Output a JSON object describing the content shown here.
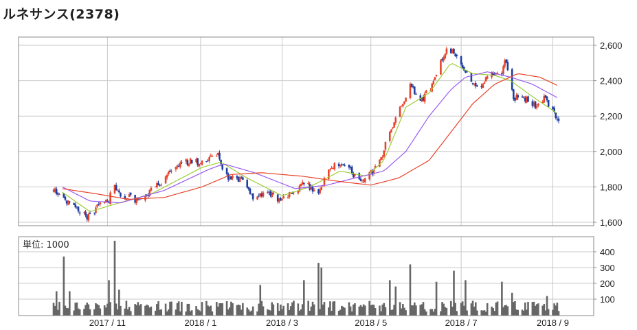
{
  "header": {
    "title": "ルネサンス(2378)"
  },
  "chart_data": [
    {
      "type": "candlestick",
      "title": "ルネサンス(2378)",
      "ylim": [
        1600,
        2650
      ],
      "yticks": [
        "1,600",
        "1,800",
        "2,000",
        "2,200",
        "2,400",
        "2,600"
      ],
      "ytick_values": [
        1600,
        1800,
        2000,
        2200,
        2400,
        2600
      ],
      "x_range": [
        "2017-09-25",
        "2018-09-07"
      ],
      "xticks": [
        {
          "label": "2017 / 11",
          "date": "2017-11-01"
        },
        {
          "label": "2018 / 1",
          "date": "2018-01-04"
        },
        {
          "label": "2018 / 3",
          "date": "2018-03-01"
        },
        {
          "label": "2018 / 5",
          "date": "2018-05-01"
        },
        {
          "label": "2018 / 7",
          "date": "2018-07-02"
        },
        {
          "label": "2018 / 9",
          "date": "2018-09-03"
        }
      ],
      "grid": true,
      "colors": {
        "up": "#e8432a",
        "down": "#1f3ea0",
        "ma_short": "#9acd32",
        "ma_mid": "#9b59f0",
        "ma_long": "#e8432a",
        "grid": "#c8c8c8",
        "frame": "#888888"
      },
      "price_path": [
        [
          "2017-09-25",
          1780
        ],
        [
          "2017-10-04",
          1720
        ],
        [
          "2017-10-14",
          1650
        ],
        [
          "2017-10-20",
          1630
        ],
        [
          "2017-10-26",
          1700
        ],
        [
          "2017-11-02",
          1710
        ],
        [
          "2017-11-04",
          1840
        ],
        [
          "2017-11-10",
          1760
        ],
        [
          "2017-11-20",
          1730
        ],
        [
          "2017-12-02",
          1780
        ],
        [
          "2017-12-12",
          1860
        ],
        [
          "2017-12-22",
          1940
        ],
        [
          "2018-01-08",
          1940
        ],
        [
          "2018-01-16",
          1990
        ],
        [
          "2018-01-20",
          1860
        ],
        [
          "2018-02-03",
          1830
        ],
        [
          "2018-02-08",
          1740
        ],
        [
          "2018-02-20",
          1760
        ],
        [
          "2018-03-01",
          1720
        ],
        [
          "2018-03-08",
          1770
        ],
        [
          "2018-03-16",
          1820
        ],
        [
          "2018-03-26",
          1770
        ],
        [
          "2018-04-04",
          1920
        ],
        [
          "2018-04-14",
          1910
        ],
        [
          "2018-04-25",
          1830
        ],
        [
          "2018-05-04",
          1900
        ],
        [
          "2018-05-08",
          1960
        ],
        [
          "2018-05-14",
          2120
        ],
        [
          "2018-05-22",
          2260
        ],
        [
          "2018-05-28",
          2370
        ],
        [
          "2018-06-05",
          2290
        ],
        [
          "2018-06-12",
          2370
        ],
        [
          "2018-06-18",
          2520
        ],
        [
          "2018-06-23",
          2580
        ],
        [
          "2018-06-30",
          2550
        ],
        [
          "2018-07-08",
          2390
        ],
        [
          "2018-07-14",
          2350
        ],
        [
          "2018-07-22",
          2450
        ],
        [
          "2018-07-30",
          2450
        ],
        [
          "2018-08-02",
          2520
        ],
        [
          "2018-08-07",
          2300
        ],
        [
          "2018-08-16",
          2300
        ],
        [
          "2018-08-22",
          2260
        ],
        [
          "2018-08-28",
          2300
        ],
        [
          "2018-09-07",
          2180
        ]
      ],
      "moving_averages": [
        {
          "type": "short",
          "points": [
            [
              "2017-10-01",
              1770
            ],
            [
              "2017-10-20",
              1660
            ],
            [
              "2017-11-05",
              1700
            ],
            [
              "2017-12-01",
              1760
            ],
            [
              "2018-01-05",
              1910
            ],
            [
              "2018-01-18",
              1940
            ],
            [
              "2018-02-05",
              1850
            ],
            [
              "2018-03-01",
              1750
            ],
            [
              "2018-03-20",
              1800
            ],
            [
              "2018-04-10",
              1890
            ],
            [
              "2018-04-28",
              1860
            ],
            [
              "2018-05-10",
              1950
            ],
            [
              "2018-05-25",
              2250
            ],
            [
              "2018-06-10",
              2330
            ],
            [
              "2018-06-25",
              2500
            ],
            [
              "2018-07-10",
              2440
            ],
            [
              "2018-07-25",
              2430
            ],
            [
              "2018-08-05",
              2400
            ],
            [
              "2018-08-20",
              2310
            ],
            [
              "2018-09-07",
              2210
            ]
          ]
        },
        {
          "type": "mid",
          "points": [
            [
              "2017-10-01",
              1800
            ],
            [
              "2017-10-20",
              1720
            ],
            [
              "2017-11-10",
              1710
            ],
            [
              "2017-12-10",
              1780
            ],
            [
              "2018-01-10",
              1900
            ],
            [
              "2018-01-20",
              1930
            ],
            [
              "2018-02-10",
              1880
            ],
            [
              "2018-03-10",
              1790
            ],
            [
              "2018-04-01",
              1810
            ],
            [
              "2018-04-20",
              1850
            ],
            [
              "2018-05-10",
              1890
            ],
            [
              "2018-05-25",
              2000
            ],
            [
              "2018-06-10",
              2200
            ],
            [
              "2018-06-25",
              2350
            ],
            [
              "2018-07-05",
              2420
            ],
            [
              "2018-07-20",
              2450
            ],
            [
              "2018-08-05",
              2420
            ],
            [
              "2018-08-20",
              2380
            ],
            [
              "2018-09-07",
              2300
            ]
          ]
        },
        {
          "type": "long",
          "points": [
            [
              "2017-10-01",
              1790
            ],
            [
              "2017-10-25",
              1760
            ],
            [
              "2017-11-15",
              1730
            ],
            [
              "2017-12-10",
              1740
            ],
            [
              "2018-01-05",
              1800
            ],
            [
              "2018-01-25",
              1870
            ],
            [
              "2018-02-15",
              1880
            ],
            [
              "2018-03-15",
              1860
            ],
            [
              "2018-04-10",
              1830
            ],
            [
              "2018-05-01",
              1810
            ],
            [
              "2018-05-20",
              1850
            ],
            [
              "2018-06-10",
              1950
            ],
            [
              "2018-06-25",
              2110
            ],
            [
              "2018-07-10",
              2270
            ],
            [
              "2018-07-25",
              2380
            ],
            [
              "2018-08-10",
              2440
            ],
            [
              "2018-08-25",
              2420
            ],
            [
              "2018-09-07",
              2370
            ]
          ]
        }
      ]
    },
    {
      "type": "bar",
      "annotation": "単位: 1000",
      "ylim": [
        0,
        480
      ],
      "yticks": [
        "100",
        "200",
        "300",
        "400"
      ],
      "ytick_values": [
        100,
        200,
        300,
        400
      ],
      "colors": {
        "bar": "#666666"
      },
      "spikes": [
        [
          "2017-09-27",
          150
        ],
        [
          "2017-10-02",
          370
        ],
        [
          "2017-10-06",
          150
        ],
        [
          "2017-11-02",
          220
        ],
        [
          "2017-11-06",
          470
        ],
        [
          "2017-11-09",
          160
        ],
        [
          "2018-02-14",
          190
        ],
        [
          "2018-03-16",
          220
        ],
        [
          "2018-03-26",
          330
        ],
        [
          "2018-03-28",
          300
        ],
        [
          "2018-05-14",
          220
        ],
        [
          "2018-05-18",
          180
        ],
        [
          "2018-05-28",
          320
        ],
        [
          "2018-06-15",
          210
        ],
        [
          "2018-06-27",
          280
        ],
        [
          "2018-07-05",
          220
        ],
        [
          "2018-07-30",
          210
        ],
        [
          "2018-08-06",
          140
        ],
        [
          "2018-08-30",
          120
        ]
      ]
    }
  ]
}
